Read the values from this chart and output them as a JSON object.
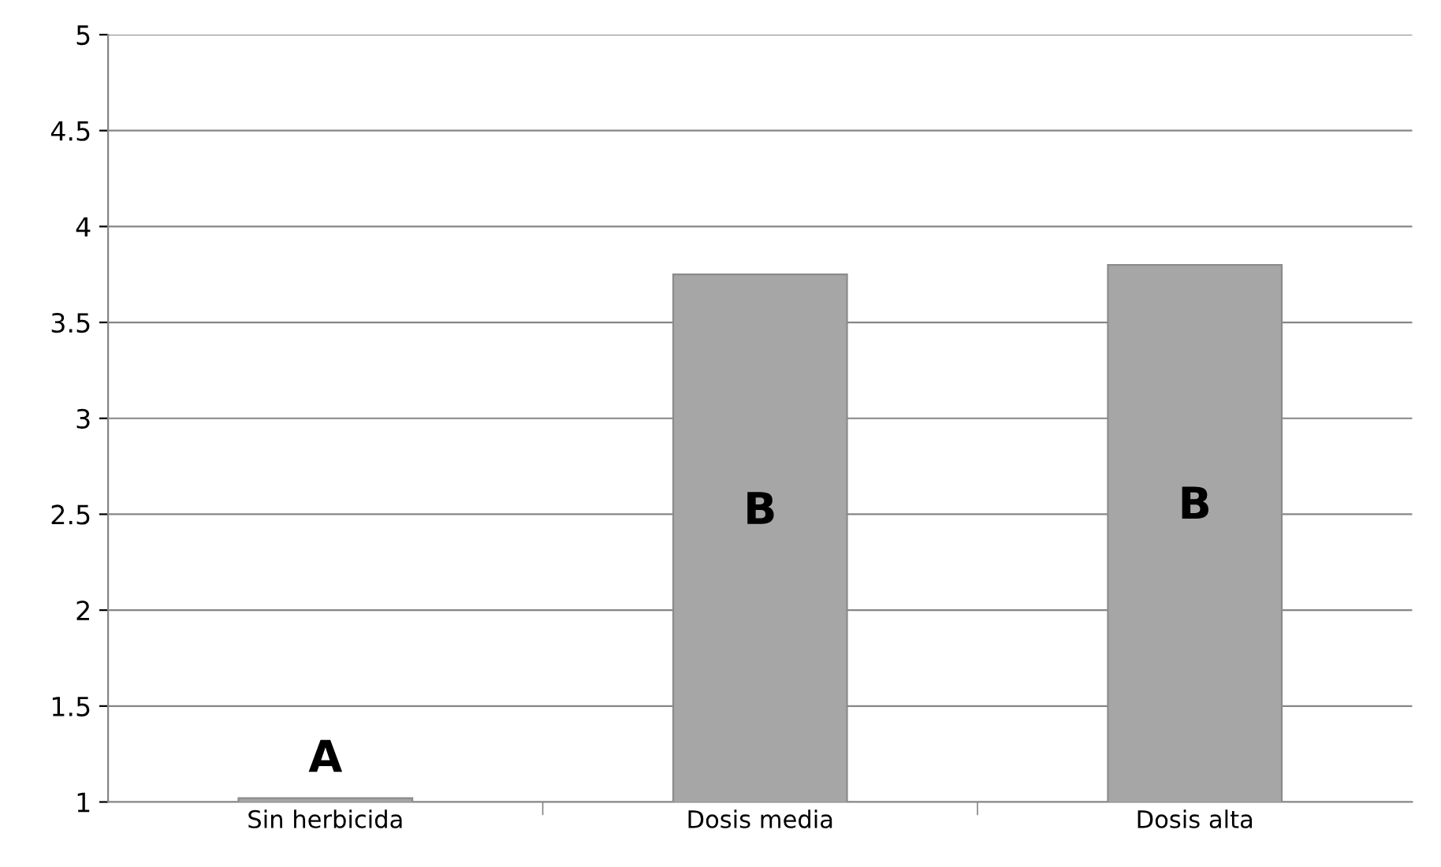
{
  "chart_data": {
    "type": "bar",
    "categories": [
      "Sin herbicida",
      "Dosis media",
      "Dosis alta"
    ],
    "values": [
      1.02,
      3.75,
      3.8
    ],
    "color": "#a6a6a6",
    "ylim": [
      1,
      5
    ],
    "yticks": [
      1,
      1.5,
      2,
      2.5,
      3,
      3.5,
      4,
      4.5,
      5
    ],
    "grid": "y",
    "legend": false,
    "annotations": [
      "A",
      "B",
      "B"
    ]
  }
}
